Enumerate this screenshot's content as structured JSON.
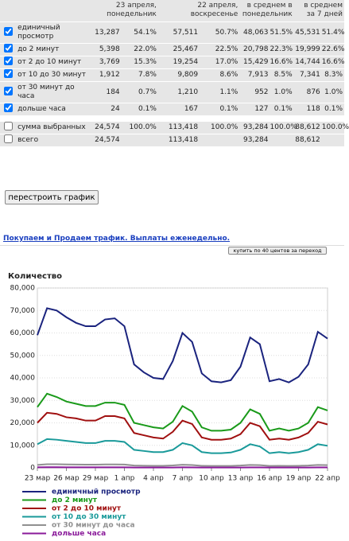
{
  "table": {
    "header": [
      "23 апреля, понедельник",
      "22 апреля, воскресенье",
      "в среднем в понедельник",
      "в среднем за 7 дней"
    ],
    "rows": [
      {
        "label": "единичный просмотр",
        "checked": true,
        "values": [
          "13,287",
          "54.1%",
          "57,511",
          "50.7%",
          "48,063",
          "51.5%",
          "45,531",
          "51.4%"
        ]
      },
      {
        "label": "до 2 минут",
        "checked": true,
        "values": [
          "5,398",
          "22.0%",
          "25,467",
          "22.5%",
          "20,798",
          "22.3%",
          "19,999",
          "22.6%"
        ]
      },
      {
        "label": "от 2 до 10 минут",
        "checked": true,
        "values": [
          "3,769",
          "15.3%",
          "19,254",
          "17.0%",
          "15,429",
          "16.6%",
          "14,744",
          "16.6%"
        ]
      },
      {
        "label": "от 10 до 30 минут",
        "checked": true,
        "values": [
          "1,912",
          "7.8%",
          "9,809",
          "8.6%",
          "7,913",
          "8.5%",
          "7,341",
          "8.3%"
        ]
      },
      {
        "label": "от 30 минут до часа",
        "checked": true,
        "values": [
          "184",
          "0.7%",
          "1,210",
          "1.1%",
          "952",
          "1.0%",
          "876",
          "1.0%"
        ]
      },
      {
        "label": "дольше часа",
        "checked": true,
        "values": [
          "24",
          "0.1%",
          "167",
          "0.1%",
          "127",
          "0.1%",
          "118",
          "0.1%"
        ]
      },
      {
        "label": "сумма выбранных",
        "checked": false,
        "values": [
          "24,574",
          "100.0%",
          "113,418",
          "100.0%",
          "93,284",
          "100.0%",
          "88,612",
          "100.0%"
        ]
      },
      {
        "label": "всего",
        "checked": false,
        "values": [
          "24,574",
          "113,418",
          "93,284",
          "88,612"
        ]
      }
    ]
  },
  "rebuild_button": "перестроить график",
  "ad": {
    "link": "Покупаем и Продаем трафик. Выплаты еженедельно.",
    "button": "купить по 40 центов за переход"
  },
  "chart_data": {
    "type": "line",
    "title": "Количество",
    "categories": [
      "23 мар",
      null,
      null,
      "26 мар",
      null,
      null,
      "29 мар",
      null,
      null,
      "1 апр",
      null,
      null,
      "4 апр",
      null,
      null,
      "7 апр",
      null,
      null,
      "10 апр",
      null,
      null,
      "13 апр",
      null,
      null,
      "16 апр",
      null,
      null,
      "19 апр",
      null,
      null,
      "22 апр"
    ],
    "series": [
      {
        "name": "единичный просмотр",
        "color": "#1a237e",
        "values": [
          59000,
          71000,
          70000,
          67000,
          64500,
          63000,
          63000,
          66000,
          66500,
          63000,
          46000,
          42500,
          40000,
          39500,
          47500,
          60000,
          56000,
          42000,
          38500,
          38000,
          39000,
          45000,
          58000,
          55000,
          38500,
          39500,
          38000,
          40500,
          46000,
          60500,
          57500
        ]
      },
      {
        "name": "до 2 минут",
        "color": "#1a9a1a",
        "values": [
          27000,
          33000,
          31500,
          29500,
          28500,
          27500,
          27500,
          29000,
          29000,
          28000,
          20000,
          19000,
          18000,
          17500,
          20500,
          27500,
          25000,
          18000,
          16500,
          16500,
          17000,
          20000,
          26000,
          24000,
          16500,
          17500,
          16500,
          17500,
          20000,
          27000,
          25500
        ]
      },
      {
        "name": "от 2 до 10 минут",
        "color": "#a01010",
        "values": [
          20000,
          24500,
          24000,
          22500,
          22000,
          21000,
          21000,
          23000,
          23000,
          22000,
          15500,
          14500,
          13500,
          13000,
          16000,
          21000,
          19500,
          13500,
          12500,
          12500,
          13000,
          15000,
          20000,
          18500,
          12500,
          13000,
          12500,
          13500,
          15500,
          20500,
          19300
        ]
      },
      {
        "name": "от 10 до 30 минут",
        "color": "#1a9a9a",
        "values": [
          10500,
          12800,
          12500,
          12000,
          11500,
          11000,
          11000,
          12000,
          12000,
          11500,
          8000,
          7500,
          7000,
          7000,
          8000,
          11000,
          10000,
          7000,
          6500,
          6500,
          6800,
          8000,
          10500,
          9500,
          6500,
          7000,
          6500,
          7000,
          8000,
          10500,
          9800
        ]
      },
      {
        "name": "от 30 минут до часа",
        "color": "#909090",
        "values": [
          1300,
          1600,
          1600,
          1500,
          1450,
          1400,
          1400,
          1500,
          1500,
          1450,
          1000,
          950,
          900,
          900,
          1050,
          1350,
          1250,
          900,
          850,
          850,
          850,
          1000,
          1300,
          1200,
          850,
          900,
          850,
          900,
          1000,
          1300,
          1200
        ]
      },
      {
        "name": "дольше часа",
        "color": "#8a1a9a",
        "values": [
          200,
          250,
          250,
          230,
          220,
          210,
          210,
          230,
          230,
          220,
          150,
          140,
          130,
          130,
          150,
          200,
          190,
          130,
          120,
          120,
          120,
          150,
          190,
          180,
          120,
          130,
          120,
          130,
          150,
          190,
          170
        ]
      }
    ],
    "ylim": [
      0,
      80000
    ],
    "yticks": [
      0,
      {
        "value": 10000,
        "label": "10,000"
      },
      {
        "value": 20000,
        "label": "20,000"
      },
      {
        "value": 30000,
        "label": "30,000"
      },
      {
        "value": 40000,
        "label": "40,000"
      },
      {
        "value": 50000,
        "label": "50,000"
      },
      {
        "value": 60000,
        "label": "60,000"
      },
      {
        "value": 70000,
        "label": "70,000"
      },
      {
        "value": 80000,
        "label": "80,000"
      }
    ],
    "grid": true
  }
}
